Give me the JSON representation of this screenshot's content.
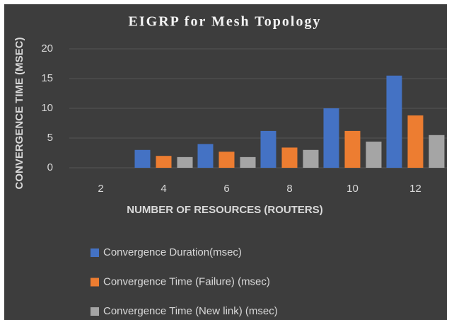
{
  "chart_data": {
    "type": "bar",
    "title": "EIGRP for Mesh Topology",
    "x_label": "NUMBER OF RESOURCES (ROUTERS)",
    "y_label": "CONVERGENCE TIME (MSEC)",
    "categories": [
      "2",
      "4",
      "6",
      "8",
      "10",
      "12"
    ],
    "series": [
      {
        "name": "Convergence Duration(msec)",
        "color": "#4472c4",
        "values": [
          0,
          3,
          4,
          6.2,
          10,
          15.5
        ]
      },
      {
        "name": "Convergence Time (Failure) (msec)",
        "color": "#ed7d31",
        "values": [
          0,
          2,
          2.7,
          3.4,
          6.2,
          8.8
        ]
      },
      {
        "name": "Convergence Time (New link) (msec)",
        "color": "#a5a5a5",
        "values": [
          0,
          1.8,
          1.8,
          3,
          4.4,
          5.5
        ]
      }
    ],
    "ylim": [
      0,
      20
    ],
    "yticks": [
      0,
      5,
      10,
      15,
      20
    ],
    "grid": true,
    "legend": "bottom"
  }
}
